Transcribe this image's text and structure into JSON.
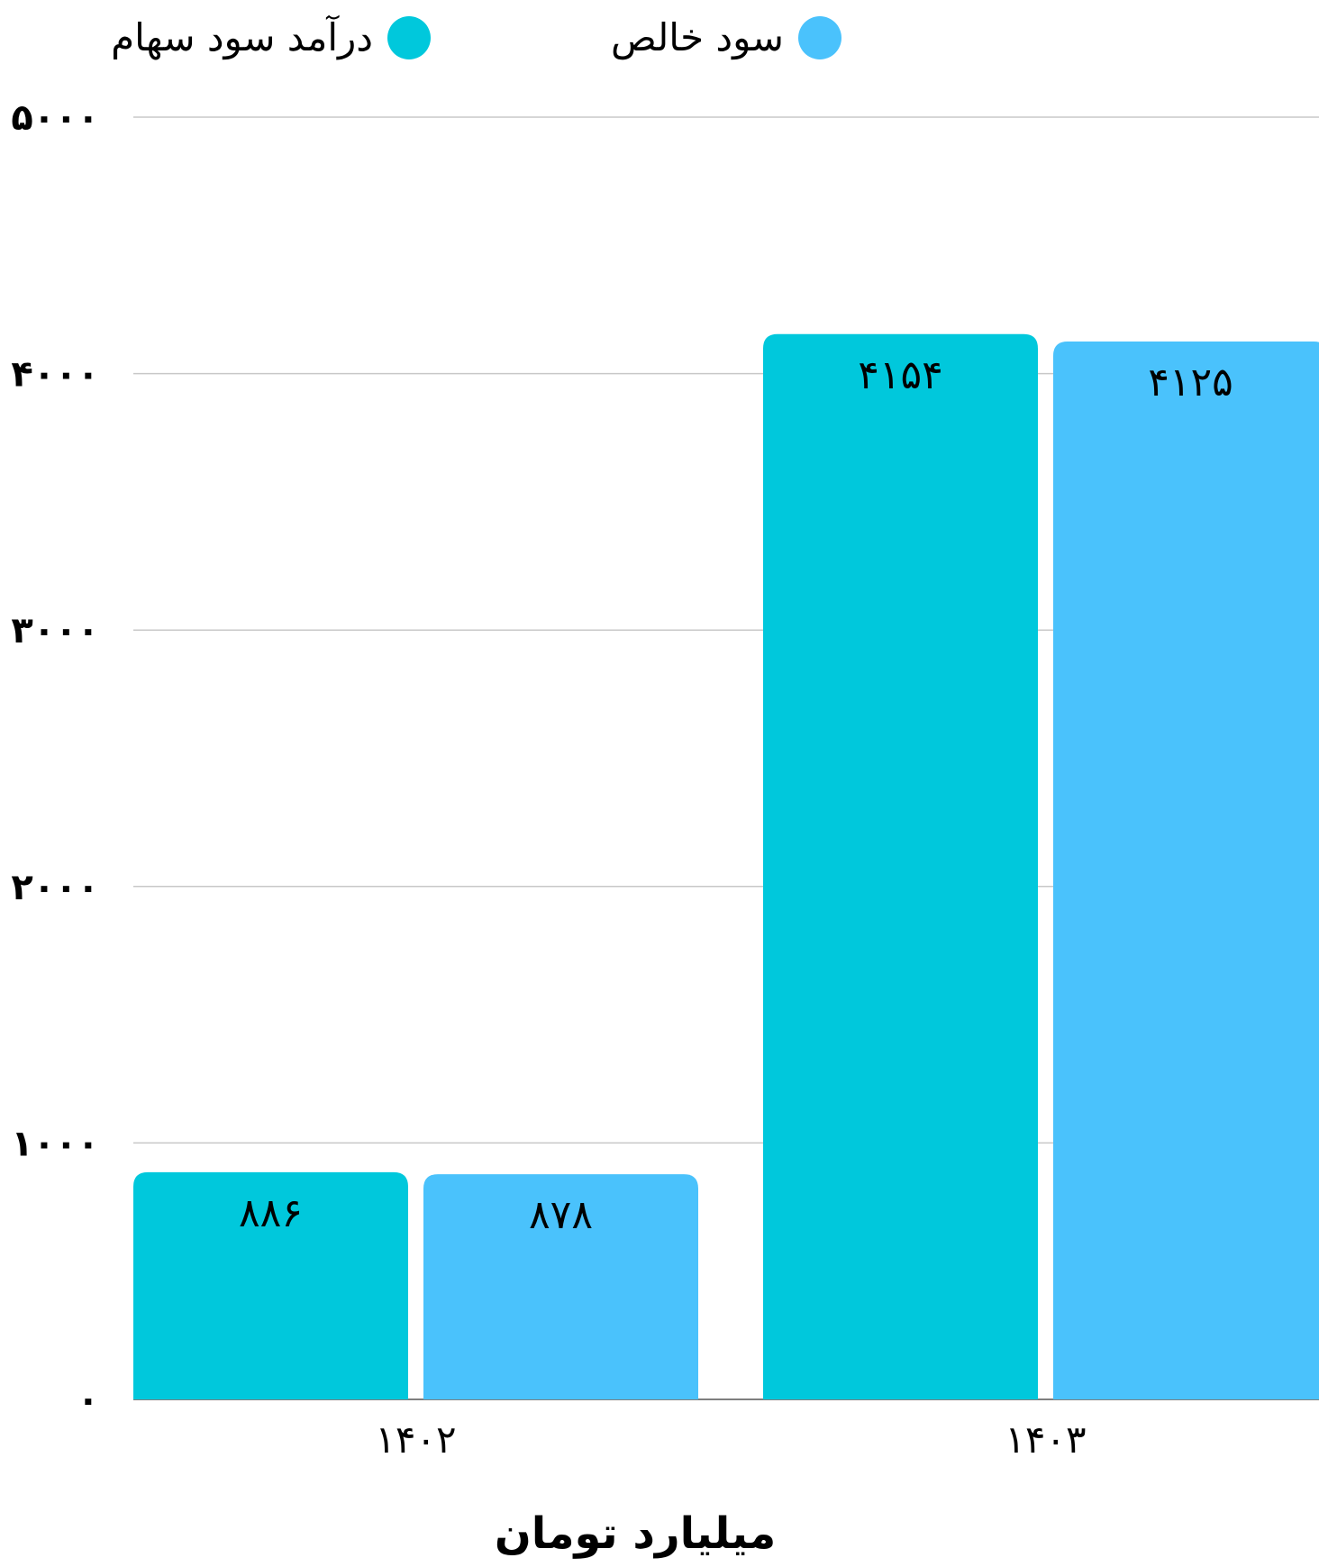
{
  "chart_data": {
    "type": "bar",
    "categories": [
      "۱۴۰۲",
      "۱۴۰۳"
    ],
    "series": [
      {
        "name": "درآمد سود سهام",
        "color": "#00C8DC",
        "values": [
          886,
          4154
        ],
        "value_labels": [
          "۸۸۶",
          "۴۱۵۴"
        ]
      },
      {
        "name": "سود خالص",
        "color": "#4AC2FC",
        "values": [
          878,
          4125
        ],
        "value_labels": [
          "۸۷۸",
          "۴۱۲۵"
        ]
      }
    ],
    "ylim": [
      0,
      5000
    ],
    "yticks": [
      0,
      1000,
      2000,
      3000,
      4000,
      5000
    ],
    "ytick_labels": [
      "۰",
      "۱۰۰۰",
      "۲۰۰۰",
      "۳۰۰۰",
      "۴۰۰۰",
      "۵۰۰۰"
    ],
    "xlabel": "میلیارد تومان",
    "ylabel": "",
    "title": "",
    "grid": true,
    "legend_position": "top-center",
    "colors": {
      "grid": "#C8C8C8",
      "axis": "#555555"
    }
  }
}
